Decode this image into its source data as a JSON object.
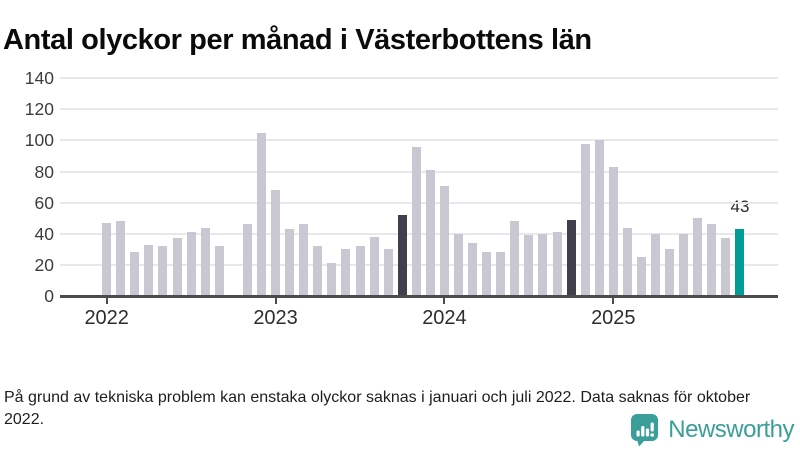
{
  "footnote": "På grund av tekniska problem kan enstaka olyckor saknas i januari och juli 2022. Data saknas för oktober 2022.",
  "logo": {
    "text": "Newsworthy",
    "icon": "newsworthy-speech-bubble-bar-chart-icon",
    "color": "#3a9e99"
  },
  "chart_data": {
    "type": "bar",
    "title": "Antal olyckor per månad i Västerbottens län",
    "xlabel": "",
    "ylabel": "",
    "ylim": [
      0,
      140
    ],
    "yticks": [
      0,
      20,
      40,
      60,
      80,
      100,
      120,
      140
    ],
    "grid": "horizontal",
    "legend": "none",
    "x_unit": "month",
    "missing_data": [
      "2022-10"
    ],
    "year_ticks": [
      {
        "label": "2022",
        "month_index": 0
      },
      {
        "label": "2023",
        "month_index": 12
      },
      {
        "label": "2024",
        "month_index": 24
      },
      {
        "label": "2025",
        "month_index": 36
      }
    ],
    "annotation": {
      "text": "43",
      "month_index": 45
    },
    "colors": {
      "bar_default": "#c9c8d2",
      "bar_dark": "#413f4d",
      "bar_current": "#009c96",
      "grid": "#e8e7eb",
      "axis": "#4b4b4a"
    },
    "series": [
      {
        "name": "Antal olyckor",
        "points": [
          {
            "m": "2022-01",
            "v": 47
          },
          {
            "m": "2022-02",
            "v": 48
          },
          {
            "m": "2022-03",
            "v": 28
          },
          {
            "m": "2022-04",
            "v": 33
          },
          {
            "m": "2022-05",
            "v": 32
          },
          {
            "m": "2022-06",
            "v": 37
          },
          {
            "m": "2022-07",
            "v": 41
          },
          {
            "m": "2022-08",
            "v": 44
          },
          {
            "m": "2022-09",
            "v": 32
          },
          {
            "m": "2022-10",
            "v": null
          },
          {
            "m": "2022-11",
            "v": 46
          },
          {
            "m": "2022-12",
            "v": 105
          },
          {
            "m": "2023-01",
            "v": 68
          },
          {
            "m": "2023-02",
            "v": 43
          },
          {
            "m": "2023-03",
            "v": 46
          },
          {
            "m": "2023-04",
            "v": 32
          },
          {
            "m": "2023-05",
            "v": 21
          },
          {
            "m": "2023-06",
            "v": 30
          },
          {
            "m": "2023-07",
            "v": 32
          },
          {
            "m": "2023-08",
            "v": 38
          },
          {
            "m": "2023-09",
            "v": 30
          },
          {
            "m": "2023-10",
            "v": 52,
            "hl": "dark"
          },
          {
            "m": "2023-11",
            "v": 96
          },
          {
            "m": "2023-12",
            "v": 81
          },
          {
            "m": "2024-01",
            "v": 71
          },
          {
            "m": "2024-02",
            "v": 40
          },
          {
            "m": "2024-03",
            "v": 34
          },
          {
            "m": "2024-04",
            "v": 28
          },
          {
            "m": "2024-05",
            "v": 28
          },
          {
            "m": "2024-06",
            "v": 48
          },
          {
            "m": "2024-07",
            "v": 39
          },
          {
            "m": "2024-08",
            "v": 40
          },
          {
            "m": "2024-09",
            "v": 41
          },
          {
            "m": "2024-10",
            "v": 49,
            "hl": "dark"
          },
          {
            "m": "2024-11",
            "v": 98
          },
          {
            "m": "2024-12",
            "v": 100
          },
          {
            "m": "2025-01",
            "v": 83
          },
          {
            "m": "2025-02",
            "v": 44
          },
          {
            "m": "2025-03",
            "v": 25
          },
          {
            "m": "2025-04",
            "v": 40
          },
          {
            "m": "2025-05",
            "v": 30
          },
          {
            "m": "2025-06",
            "v": 40
          },
          {
            "m": "2025-07",
            "v": 50
          },
          {
            "m": "2025-08",
            "v": 46
          },
          {
            "m": "2025-09",
            "v": 37
          },
          {
            "m": "2025-10",
            "v": 43,
            "hl": "current"
          }
        ]
      }
    ]
  }
}
